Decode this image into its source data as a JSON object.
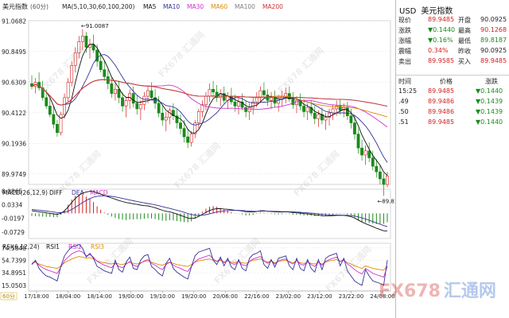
{
  "chart_data": {
    "type": "line",
    "main_panel": {
      "title": "美元指数",
      "timeframe": "(60分)",
      "ma_header": "MA(5,10,30,60,100,200)",
      "ma_legend": [
        {
          "name": "MA5",
          "color": "#111111"
        },
        {
          "name": "MA10",
          "color": "#333399"
        },
        {
          "name": "MA30",
          "color": "#cc33cc"
        },
        {
          "name": "MA60",
          "color": "#e08a00"
        },
        {
          "name": "MA100",
          "color": "#808080"
        },
        {
          "name": "MA200",
          "color": "#cc3333"
        }
      ],
      "y_ticks": [
        "91.0682",
        "90.8495",
        "90.6309",
        "90.4122",
        "90.1936",
        "89.9749"
      ],
      "ylim": [
        89.9,
        91.07
      ],
      "high_label": "91.0087",
      "low_label": "89.8187",
      "candles": [
        [
          90.62,
          90.68,
          90.58,
          90.6
        ],
        [
          90.6,
          90.66,
          90.55,
          90.63
        ],
        [
          90.63,
          90.7,
          90.57,
          90.59
        ],
        [
          90.59,
          90.64,
          90.5,
          90.52
        ],
        [
          90.52,
          90.58,
          90.44,
          90.46
        ],
        [
          90.46,
          90.52,
          90.38,
          90.4
        ],
        [
          90.4,
          90.46,
          90.3,
          90.33
        ],
        [
          90.33,
          90.36,
          90.24,
          90.27
        ],
        [
          90.27,
          90.42,
          90.25,
          90.4
        ],
        [
          90.4,
          90.55,
          90.37,
          90.52
        ],
        [
          90.52,
          90.66,
          90.49,
          90.63
        ],
        [
          90.63,
          90.78,
          90.6,
          90.75
        ],
        [
          90.75,
          90.88,
          90.7,
          90.84
        ],
        [
          90.84,
          90.96,
          90.8,
          90.92
        ],
        [
          90.92,
          91.0087,
          90.86,
          90.96
        ],
        [
          90.96,
          90.99,
          90.84,
          90.88
        ],
        [
          90.88,
          90.94,
          90.8,
          90.9
        ],
        [
          90.9,
          90.97,
          90.84,
          90.86
        ],
        [
          90.86,
          90.9,
          90.74,
          90.78
        ],
        [
          90.78,
          90.84,
          90.7,
          90.72
        ],
        [
          90.72,
          90.78,
          90.64,
          90.67
        ],
        [
          90.67,
          90.72,
          90.58,
          90.62
        ],
        [
          90.62,
          90.66,
          90.52,
          90.55
        ],
        [
          90.55,
          90.62,
          90.5,
          90.58
        ],
        [
          90.58,
          90.64,
          90.48,
          90.52
        ],
        [
          90.52,
          90.56,
          90.42,
          90.46
        ],
        [
          90.46,
          90.52,
          90.38,
          90.5
        ],
        [
          90.5,
          90.58,
          90.44,
          90.55
        ],
        [
          90.55,
          90.6,
          90.45,
          90.48
        ],
        [
          90.48,
          90.54,
          90.4,
          90.44
        ],
        [
          90.44,
          90.5,
          90.36,
          90.47
        ],
        [
          90.47,
          90.56,
          90.43,
          90.53
        ],
        [
          90.53,
          90.6,
          90.48,
          90.57
        ],
        [
          90.57,
          90.63,
          90.5,
          90.52
        ],
        [
          90.52,
          90.58,
          90.44,
          90.48
        ],
        [
          90.48,
          90.53,
          90.38,
          90.41
        ],
        [
          90.41,
          90.46,
          90.32,
          90.36
        ],
        [
          90.36,
          90.42,
          90.28,
          90.38
        ],
        [
          90.38,
          90.45,
          90.33,
          90.43
        ],
        [
          90.43,
          90.48,
          90.36,
          90.39
        ],
        [
          90.39,
          90.44,
          90.3,
          90.34
        ],
        [
          90.34,
          90.4,
          90.26,
          90.3
        ],
        [
          90.3,
          90.36,
          90.2,
          90.24
        ],
        [
          90.24,
          90.3,
          90.16,
          90.2
        ],
        [
          90.2,
          90.28,
          90.17,
          90.26
        ],
        [
          90.26,
          90.36,
          90.23,
          90.34
        ],
        [
          90.34,
          90.44,
          90.3,
          90.42
        ],
        [
          90.42,
          90.5,
          90.38,
          90.47
        ],
        [
          90.47,
          90.56,
          90.43,
          90.53
        ],
        [
          90.53,
          90.62,
          90.49,
          90.58
        ],
        [
          90.58,
          90.64,
          90.52,
          90.56
        ],
        [
          90.56,
          90.61,
          90.49,
          90.52
        ],
        [
          90.52,
          90.58,
          90.46,
          90.55
        ],
        [
          90.55,
          90.6,
          90.48,
          90.5
        ],
        [
          90.5,
          90.56,
          90.44,
          90.53
        ],
        [
          90.53,
          90.59,
          90.47,
          90.49
        ],
        [
          90.49,
          90.54,
          90.42,
          90.46
        ],
        [
          90.46,
          90.52,
          90.4,
          90.49
        ],
        [
          90.49,
          90.55,
          90.43,
          90.45
        ],
        [
          90.45,
          90.5,
          90.38,
          90.42
        ],
        [
          90.42,
          90.48,
          90.36,
          90.45
        ],
        [
          90.45,
          90.52,
          90.4,
          90.49
        ],
        [
          90.49,
          90.56,
          90.45,
          90.52
        ],
        [
          90.52,
          90.6,
          90.48,
          90.57
        ],
        [
          90.57,
          90.63,
          90.52,
          90.54
        ],
        [
          90.54,
          90.58,
          90.46,
          90.5
        ],
        [
          90.5,
          90.56,
          90.44,
          90.52
        ],
        [
          90.52,
          90.57,
          90.45,
          90.48
        ],
        [
          90.48,
          90.54,
          90.42,
          90.51
        ],
        [
          90.51,
          90.57,
          90.46,
          90.53
        ],
        [
          90.53,
          90.59,
          90.48,
          90.55
        ],
        [
          90.55,
          90.6,
          90.49,
          90.51
        ],
        [
          90.51,
          90.56,
          90.44,
          90.47
        ],
        [
          90.47,
          90.53,
          90.41,
          90.5
        ],
        [
          90.5,
          90.55,
          90.43,
          90.46
        ],
        [
          90.46,
          90.51,
          90.38,
          90.42
        ],
        [
          90.42,
          90.48,
          90.36,
          90.45
        ],
        [
          90.45,
          90.5,
          90.39,
          90.41
        ],
        [
          90.41,
          90.46,
          90.33,
          90.37
        ],
        [
          90.37,
          90.43,
          90.31,
          90.4
        ],
        [
          90.4,
          90.45,
          90.33,
          90.36
        ],
        [
          90.36,
          90.41,
          90.29,
          90.38
        ],
        [
          90.38,
          90.44,
          90.32,
          90.41
        ],
        [
          90.41,
          90.47,
          90.36,
          90.44
        ],
        [
          90.44,
          90.5,
          90.39,
          90.46
        ],
        [
          90.46,
          90.51,
          90.4,
          90.43
        ],
        [
          90.43,
          90.48,
          90.38,
          90.45
        ],
        [
          90.45,
          90.49,
          90.36,
          90.39
        ],
        [
          90.39,
          90.44,
          90.3,
          90.34
        ],
        [
          90.34,
          90.4,
          90.22,
          90.26
        ],
        [
          90.26,
          90.3,
          90.12,
          90.16
        ],
        [
          90.16,
          90.22,
          90.07,
          90.11
        ],
        [
          90.11,
          90.18,
          90.04,
          90.14
        ],
        [
          90.14,
          90.2,
          90.06,
          90.09
        ],
        [
          90.09,
          90.14,
          90.0,
          90.03
        ],
        [
          90.03,
          90.08,
          89.95,
          89.99
        ],
        [
          89.99,
          90.04,
          89.9,
          89.94
        ],
        [
          89.94,
          89.98,
          89.8187,
          89.9
        ],
        [
          89.9,
          89.99,
          89.88,
          89.96
        ]
      ]
    },
    "macd_panel": {
      "header": "MACD(26,12,9)",
      "legend": [
        {
          "name": "DIFF",
          "color": "#111111"
        },
        {
          "name": "DEA",
          "color": "#333399"
        },
        {
          "name": "MACD",
          "color": "#cc33cc"
        }
      ],
      "y_ticks": [
        "0.0865",
        "0.0334",
        "-0.0197",
        "-0.0729"
      ],
      "ylim": [
        -0.098,
        0.094
      ],
      "diff": [
        0.01,
        0.008,
        0.006,
        0.004,
        0.002,
        0.0,
        -0.002,
        -0.004,
        0.0,
        0.01,
        0.025,
        0.042,
        0.058,
        0.07,
        0.079,
        0.083,
        0.086,
        0.085,
        0.08,
        0.075,
        0.07,
        0.065,
        0.06,
        0.055,
        0.05,
        0.046,
        0.042,
        0.04,
        0.037,
        0.035,
        0.032,
        0.03,
        0.029,
        0.026,
        0.022,
        0.017,
        0.012,
        0.008,
        0.006,
        0.002,
        -0.003,
        -0.008,
        -0.013,
        -0.018,
        -0.02,
        -0.018,
        -0.012,
        -0.004,
        0.004,
        0.011,
        0.016,
        0.018,
        0.018,
        0.017,
        0.016,
        0.014,
        0.012,
        0.011,
        0.009,
        0.006,
        0.005,
        0.005,
        0.007,
        0.01,
        0.01,
        0.008,
        0.007,
        0.006,
        0.005,
        0.005,
        0.006,
        0.005,
        0.003,
        0.002,
        0.001,
        -0.001,
        -0.002,
        -0.004,
        -0.006,
        -0.007,
        -0.009,
        -0.01,
        -0.01,
        -0.009,
        -0.008,
        -0.008,
        -0.008,
        -0.01,
        -0.013,
        -0.018,
        -0.026,
        -0.034,
        -0.04,
        -0.046,
        -0.052,
        -0.058,
        -0.063,
        -0.068,
        -0.069
      ],
      "dea": [
        0.015,
        0.0136,
        0.0121,
        0.0105,
        0.0088,
        0.007,
        0.0052,
        0.0034,
        0.0027,
        0.0042,
        0.0083,
        0.0151,
        0.0237,
        0.033,
        0.0422,
        0.0504,
        0.0575,
        0.063,
        0.0664,
        0.0681,
        0.0685,
        0.0678,
        0.0662,
        0.064,
        0.0612,
        0.0582,
        0.055,
        0.052,
        0.049,
        0.0462,
        0.0434,
        0.0407,
        0.0384,
        0.0359,
        0.0331,
        0.0299,
        0.0263,
        0.0226,
        0.0193,
        0.0158,
        0.0121,
        0.0081,
        0.0039,
        -0.0005,
        -0.0044,
        -0.0071,
        -0.0081,
        -0.0073,
        -0.005,
        -0.0018,
        0.0018,
        0.005,
        0.0076,
        0.0094,
        0.0107,
        0.0114,
        0.0115,
        0.0115,
        0.011,
        0.01,
        0.009,
        0.0082,
        0.0079,
        0.0083,
        0.0086,
        0.0085,
        0.0082,
        0.0078,
        0.0072,
        0.0068,
        0.0066,
        0.0063,
        0.0056,
        0.0049,
        0.0041,
        0.0031,
        0.0021,
        0.0009,
        -0.0005,
        -0.0018,
        -0.0032,
        -0.0046,
        -0.0057,
        -0.0064,
        -0.0067,
        -0.007,
        -0.0072,
        -0.0077,
        -0.0088,
        -0.0106,
        -0.0137,
        -0.0178,
        -0.0222,
        -0.027,
        -0.032,
        -0.0372,
        -0.0424,
        -0.0475,
        -0.0518
      ]
    },
    "rsi_panel": {
      "header": "RSI(6,12,24)",
      "legend": [
        {
          "name": "RSI1",
          "color": "#111111"
        },
        {
          "name": "RSI2",
          "color": "#cc33cc"
        },
        {
          "name": "RSI3",
          "color": "#e08a00"
        }
      ],
      "y_ticks": [
        "74.5848",
        "54.7399",
        "34.8951",
        "15.0503"
      ],
      "ylim": [
        6,
        82
      ],
      "rsi1": [
        48,
        55,
        42,
        35,
        30,
        28,
        25,
        22,
        45,
        62,
        70,
        76,
        78,
        80,
        74,
        60,
        66,
        58,
        45,
        42,
        38,
        36,
        34,
        55,
        40,
        36,
        52,
        60,
        42,
        40,
        55,
        62,
        64,
        45,
        40,
        34,
        30,
        50,
        58,
        42,
        36,
        32,
        28,
        25,
        45,
        62,
        68,
        70,
        72,
        74,
        55,
        48,
        60,
        46,
        58,
        44,
        40,
        56,
        42,
        38,
        58,
        64,
        66,
        70,
        48,
        42,
        56,
        44,
        58,
        60,
        62,
        46,
        40,
        58,
        42,
        38,
        56,
        42,
        36,
        56,
        40,
        58,
        62,
        64,
        66,
        46,
        58,
        38,
        30,
        22,
        18,
        15,
        40,
        30,
        22,
        20,
        18,
        15,
        55
      ],
      "rsi2": [
        50,
        53,
        47,
        43,
        40,
        38,
        36,
        34,
        44,
        54,
        60,
        65,
        68,
        70,
        68,
        62,
        64,
        60,
        53,
        50,
        47,
        45,
        43,
        50,
        45,
        43,
        49,
        53,
        47,
        45,
        50,
        54,
        56,
        50,
        47,
        43,
        40,
        48,
        52,
        47,
        44,
        42,
        39,
        37,
        45,
        53,
        57,
        59,
        61,
        63,
        57,
        53,
        57,
        51,
        55,
        50,
        48,
        53,
        48,
        46,
        53,
        57,
        59,
        61,
        54,
        50,
        54,
        49,
        54,
        56,
        57,
        52,
        49,
        55,
        49,
        47,
        53,
        48,
        45,
        52,
        47,
        53,
        56,
        58,
        60,
        53,
        56,
        49,
        45,
        40,
        36,
        33,
        42,
        38,
        34,
        32,
        30,
        28,
        45
      ],
      "rsi3": [
        50,
        52,
        49,
        47,
        45,
        44,
        43,
        42,
        46,
        51,
        54,
        57,
        59,
        61,
        60,
        58,
        59,
        57,
        54,
        52,
        51,
        50,
        49,
        51,
        49,
        48,
        50,
        52,
        50,
        49,
        51,
        53,
        54,
        52,
        50,
        48,
        47,
        50,
        52,
        50,
        48,
        47,
        46,
        45,
        48,
        52,
        54,
        55,
        56,
        57,
        55,
        53,
        55,
        52,
        54,
        52,
        51,
        53,
        51,
        50,
        53,
        55,
        56,
        57,
        54,
        52,
        54,
        51,
        53,
        54,
        55,
        53,
        51,
        54,
        51,
        50,
        52,
        50,
        49,
        52,
        49,
        52,
        54,
        55,
        56,
        53,
        55,
        51,
        49,
        46,
        44,
        42,
        46,
        44,
        42,
        41,
        40,
        39,
        46
      ]
    },
    "time_labels": [
      "17/18:00",
      "18/04:00",
      "18/14:00",
      "19/00:00",
      "19/10:00",
      "19/20:00",
      "20/06:00",
      "22/16:00",
      "23/02:00",
      "23/12:00",
      "23/22:00",
      "24/08:00"
    ],
    "bottom_tag": "60分"
  },
  "quote_panel": {
    "symbol": "USD",
    "name": "美元指数",
    "rows": [
      {
        "l1": "现价",
        "v1": "89.9485",
        "c1": "up",
        "l2": "开盘",
        "v2": "90.0925",
        "c2": "neutral"
      },
      {
        "l1": "涨跌",
        "v1": "▼0.1440",
        "c1": "dn",
        "l2": "最高",
        "v2": "90.1268",
        "c2": "up"
      },
      {
        "l1": "涨幅",
        "v1": "▼0.16%",
        "c1": "dn",
        "l2": "最低",
        "v2": "89.8187",
        "c2": "dn"
      },
      {
        "l1": "震幅",
        "v1": "0.34%",
        "c1": "up",
        "l2": "昨收",
        "v2": "90.0925",
        "c2": "neutral"
      },
      {
        "l1": "卖出",
        "v1": "89.9585",
        "c1": "up",
        "l2": "买入",
        "v2": "89.9485",
        "c2": "up"
      }
    ],
    "trades_header": {
      "time": "时间",
      "price": "价格",
      "change": "涨跌"
    },
    "trades": [
      {
        "time": "15:25",
        "price": "89.9485",
        "change": "▼0.1440"
      },
      {
        "time": ".49",
        "price": "89.9486",
        "change": "▼0.1439"
      },
      {
        "time": ".50",
        "price": "89.9486",
        "change": "▼0.1439"
      },
      {
        "time": ".51",
        "price": "89.9485",
        "change": "▼0.1440"
      }
    ]
  },
  "watermark_text": "FX678 汇通网",
  "logo": {
    "main": "FX678",
    "sub": "汇通网"
  },
  "colors": {
    "up": "#d42020",
    "down": "#1a8a1a",
    "ma5": "#111111",
    "ma10": "#333399",
    "ma30": "#cc33cc",
    "ma60": "#e08a00",
    "ma100": "#808080",
    "ma200": "#cc3333"
  }
}
